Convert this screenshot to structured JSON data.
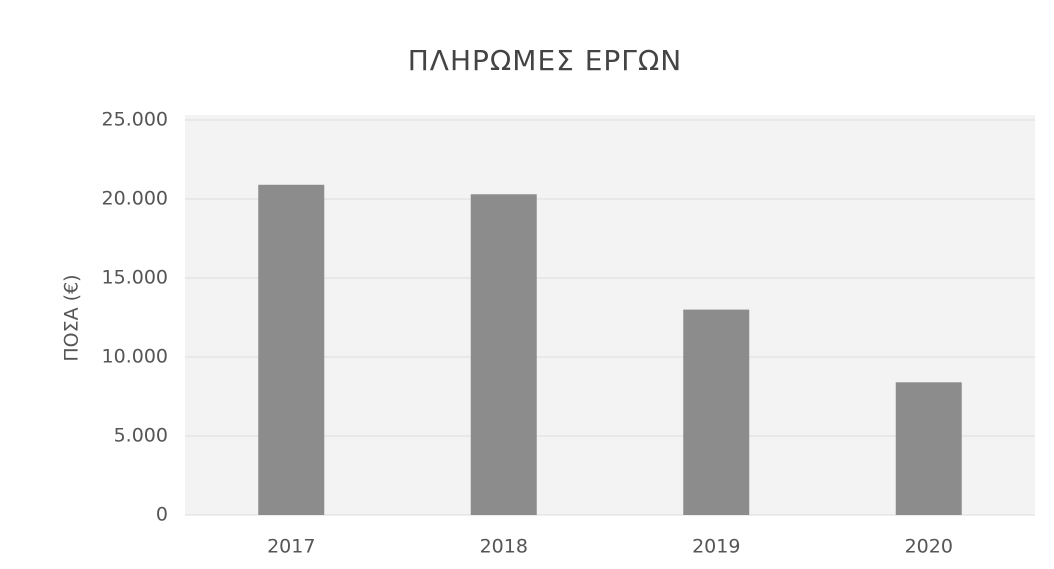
{
  "chart_data": {
    "type": "bar",
    "title": "ΠΛΗΡΩΜΕΣ ΕΡΓΩΝ",
    "y_label": "ΠΟΣΑ (€)",
    "categories": [
      "2017",
      "2018",
      "2019",
      "2020"
    ],
    "values": [
      20900,
      20300,
      13000,
      8400
    ],
    "color": "#8c8c8c",
    "ylim": [
      0,
      25000
    ],
    "yticks": [
      0,
      {
        "value": 5000,
        "label": "5.000"
      },
      {
        "value": 10000,
        "label": "10.000"
      },
      {
        "value": 15000,
        "label": "15.000"
      },
      {
        "value": 20000,
        "label": "20.000"
      },
      {
        "value": 25000,
        "label": "25.000"
      }
    ],
    "grid": true
  }
}
